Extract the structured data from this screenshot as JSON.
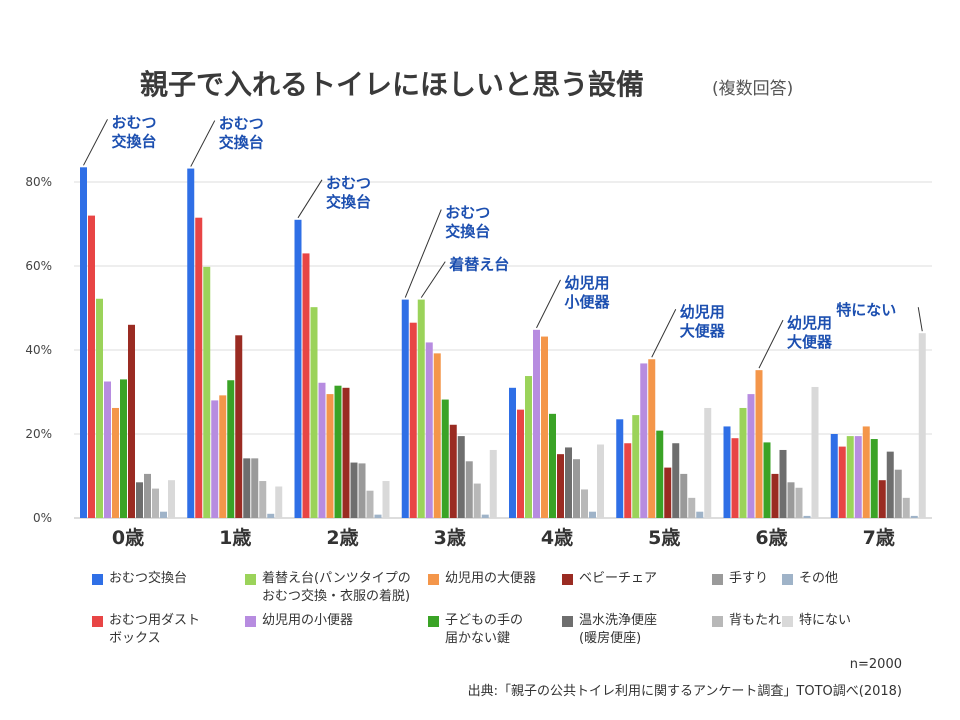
{
  "title": "親子で入れるトイレにほしいと思う設備",
  "subtitle": "(複数回答)",
  "n_note": "n=2000",
  "source": "出典:「親子の公共トイレ利用に関するアンケート調査」TOTO調べ(2018)",
  "y_ticks": [
    "0%",
    "20%",
    "40%",
    "60%",
    "80%"
  ],
  "colors": [
    "#2f6fe6",
    "#e84545",
    "#9bd35a",
    "#b78ce0",
    "#f4964a",
    "#3aa326",
    "#9a2b22",
    "#6e6e6e",
    "#9a9a9a",
    "#b8b8b8",
    "#9fb3c8",
    "#d9d9d9"
  ],
  "legend_rows": [
    [
      0,
      2,
      4,
      6,
      8,
      10
    ],
    [
      1,
      3,
      5,
      7,
      9,
      11
    ]
  ],
  "annotations": [
    {
      "group": 0,
      "series": 0,
      "text": "おむつ\n交換台"
    },
    {
      "group": 1,
      "series": 0,
      "text": "おむつ\n交換台"
    },
    {
      "group": 2,
      "series": 0,
      "text": "おむつ\n交換台"
    },
    {
      "group": 3,
      "series": 0,
      "text": "おむつ\n交換台"
    },
    {
      "group": 3,
      "series": 2,
      "text": "着替え台"
    },
    {
      "group": 4,
      "series": 3,
      "text": "幼児用\n小便器"
    },
    {
      "group": 5,
      "series": 4,
      "text": "幼児用\n大便器"
    },
    {
      "group": 6,
      "series": 4,
      "text": "幼児用\n大便器"
    },
    {
      "group": 7,
      "series": 11,
      "text": "特にない"
    }
  ],
  "chart_data": {
    "type": "bar",
    "title": "親子で入れるトイレにほしいと思う設備",
    "ylim": [
      0,
      80
    ],
    "categories": [
      "0歳",
      "1歳",
      "2歳",
      "3歳",
      "4歳",
      "5歳",
      "6歳",
      "7歳"
    ],
    "series": [
      {
        "name": "おむつ交換台",
        "values": [
          83.5,
          83.2,
          71.0,
          52.0,
          31.0,
          23.5,
          21.8,
          20.0
        ]
      },
      {
        "name": "おむつ用ダスト\nボックス",
        "values": [
          72.0,
          71.5,
          63.0,
          46.5,
          25.8,
          17.8,
          19.0,
          17.0
        ]
      },
      {
        "name": "着替え台(パンツタイプの\nおむつ交換・衣服の着脱)",
        "values": [
          52.2,
          59.8,
          50.2,
          52.0,
          33.8,
          24.5,
          26.2,
          19.5
        ]
      },
      {
        "name": "幼児用の小便器",
        "values": [
          32.5,
          28.0,
          32.2,
          41.8,
          44.8,
          36.8,
          29.5,
          19.5
        ]
      },
      {
        "name": "幼児用の大便器",
        "values": [
          26.2,
          29.2,
          29.5,
          39.2,
          43.2,
          37.8,
          35.2,
          21.8
        ]
      },
      {
        "name": "子どもの手の\n届かない鍵",
        "values": [
          33.0,
          32.8,
          31.5,
          28.2,
          24.8,
          20.8,
          18.0,
          18.8
        ]
      },
      {
        "name": "ベビーチェア",
        "values": [
          46.0,
          43.5,
          31.0,
          22.2,
          15.2,
          12.0,
          10.5,
          9.0
        ]
      },
      {
        "name": "温水洗浄便座\n(暖房便座)",
        "values": [
          8.5,
          14.2,
          13.2,
          19.5,
          16.8,
          17.8,
          16.2,
          15.8
        ]
      },
      {
        "name": "手すり",
        "values": [
          10.5,
          14.2,
          13.0,
          13.5,
          14.0,
          10.5,
          8.5,
          11.5
        ]
      },
      {
        "name": "背もたれ",
        "values": [
          7.0,
          8.8,
          6.5,
          8.2,
          6.8,
          4.8,
          7.2,
          4.8
        ]
      },
      {
        "name": "その他",
        "values": [
          1.5,
          1.0,
          0.8,
          0.8,
          1.5,
          1.5,
          0.5,
          0.5
        ]
      },
      {
        "name": "特にない",
        "values": [
          9.0,
          7.5,
          8.8,
          16.2,
          17.5,
          26.2,
          31.2,
          44.0
        ]
      }
    ]
  }
}
